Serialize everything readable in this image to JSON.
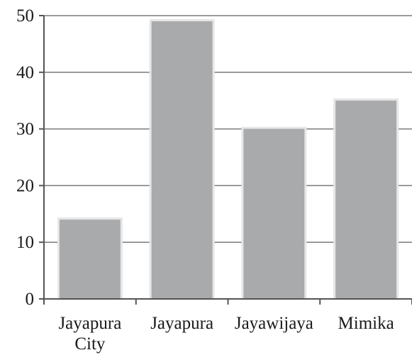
{
  "chart_data": {
    "type": "bar",
    "categories": [
      "Jayapura City",
      "Jayapura",
      "Jayawijaya",
      "Mimika"
    ],
    "category_lines": [
      [
        "Jayapura",
        "City"
      ],
      [
        "Jayapura"
      ],
      [
        "Jayawijaya"
      ],
      [
        "Mimika"
      ]
    ],
    "values": [
      14,
      49,
      30,
      35
    ],
    "title": "",
    "xlabel": "",
    "ylabel": "",
    "ylim": [
      0,
      50
    ],
    "yticks": [
      0,
      10,
      20,
      30,
      40,
      50
    ],
    "grid": true,
    "colors": {
      "bar": "#a9aaac",
      "grid": "#7a7a7a"
    }
  }
}
